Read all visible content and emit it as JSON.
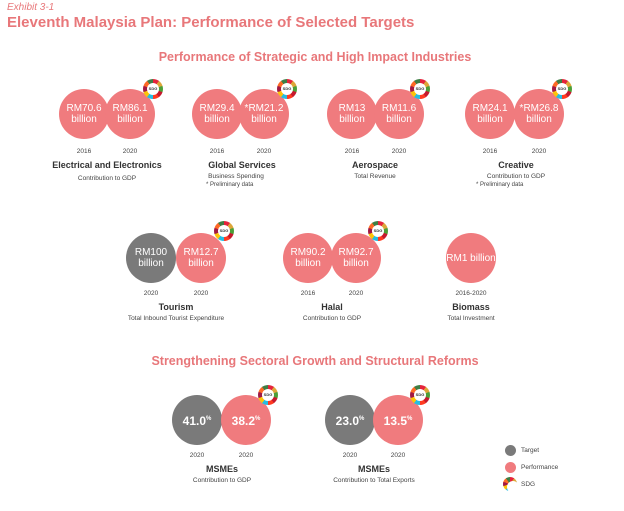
{
  "exhibit": "Exhibit 3-1",
  "title": "Eleventh Malaysia Plan: Performance of Selected Targets",
  "section1": "Performance of Strategic and High Impact Industries",
  "section2": "Strengthening Sectoral Growth and Structural Reforms",
  "sdg_text": "SDG",
  "colors": {
    "target": "#7a7a7a",
    "performance": "#f07b7e",
    "heading": "#e8777a"
  },
  "items": [
    {
      "name": "Electrical and Electronics",
      "sub": "Contribution to GDP",
      "c1": "RM70.6 billion",
      "y1": "2016",
      "c2": "RM86.1 billion",
      "y2": "2020"
    },
    {
      "name": "Global Services",
      "sub": "Business Spending",
      "note": "* Preliminary data",
      "c1": "RM29.4 billion",
      "y1": "2016",
      "c2": "*RM21.2 billion",
      "y2": "2020"
    },
    {
      "name": "Aerospace",
      "sub": "Total Revenue",
      "c1": "RM13 billion",
      "y1": "2016",
      "c2": "RM11.6 billion",
      "y2": "2020"
    },
    {
      "name": "Creative",
      "sub": "Contribution to GDP",
      "note": "* Preliminary data",
      "c1": "RM24.1 billion",
      "y1": "2016",
      "c2": "*RM26.8 billion",
      "y2": "2020"
    },
    {
      "name": "Tourism",
      "sub": "Total Inbound Tourist Expenditure",
      "c1": "RM100 billion",
      "y1": "2020",
      "c2": "RM12.7 billion",
      "y2": "2020"
    },
    {
      "name": "Halal",
      "sub": "Contribution to GDP",
      "c1": "RM90.2 billion",
      "y1": "2016",
      "c2": "RM92.7 billion",
      "y2": "2020"
    },
    {
      "name": "Biomass",
      "sub": "Total Investment",
      "c1": "RM1 billion",
      "y1": "2016-2020"
    },
    {
      "name": "MSMEs",
      "sub": "Contribution to GDP",
      "c1": "41.0",
      "y1": "2020",
      "c2": "38.2",
      "y2": "2020",
      "unit": "%"
    },
    {
      "name": "MSMEs",
      "sub": "Contribution to Total Exports",
      "c1": "23.0",
      "y1": "2020",
      "c2": "13.5",
      "y2": "2020",
      "unit": "%"
    }
  ],
  "legend": {
    "target": "Target",
    "performance": "Performance",
    "sdg": "SDG"
  }
}
